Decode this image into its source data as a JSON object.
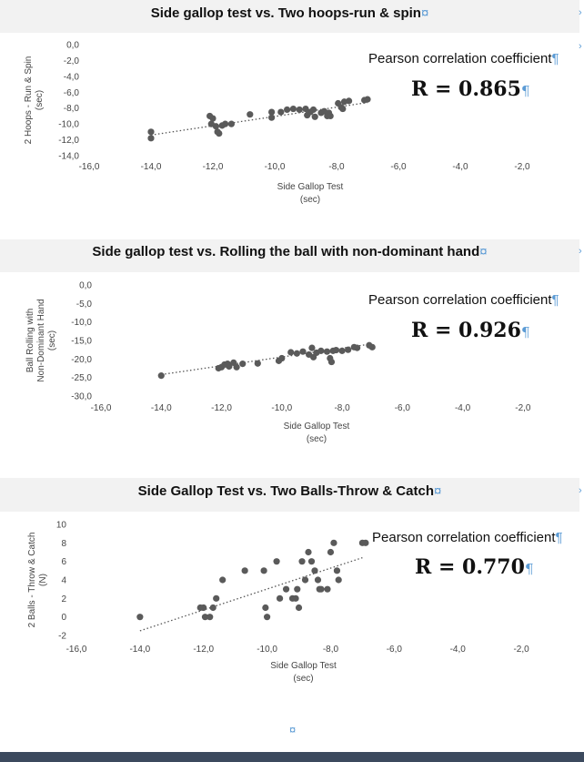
{
  "mark_symbol": "¤",
  "para_symbol": "¶",
  "footer_mark": "¤",
  "sections": [
    {
      "title": "Side gallop test vs. Two hoops-run & spin",
      "pearson_label": "Pearson correlation coefficient",
      "r_text": "R = 0.865",
      "chart_data": {
        "type": "scatter",
        "xlabel_lines": [
          "Side Gallop Test",
          "(sec)"
        ],
        "ylabel_lines": [
          "2 Hoops - Run & Spin",
          "(sec)"
        ],
        "xlim": [
          -16,
          -1
        ],
        "ylim": [
          -14,
          0
        ],
        "xticks": [
          -16,
          -14,
          -12,
          -10,
          -8,
          -6,
          -4,
          -2
        ],
        "xtick_labels": [
          "-16,0",
          "-14,0",
          "-12,0",
          "-10,0",
          "-8,0",
          "-6,0",
          "-4,0",
          "-2,0"
        ],
        "yticks": [
          0,
          -2,
          -4,
          -6,
          -8,
          -10,
          -12,
          -14
        ],
        "ytick_labels": [
          "0,0",
          "-2,0",
          "-4,0",
          "-6,0",
          "-8,0",
          "-10,0",
          "-12,0",
          "-14,0"
        ],
        "trendline": [
          [
            -14.0,
            -11.4
          ],
          [
            -7.0,
            -7.3
          ]
        ],
        "points": [
          [
            -14.0,
            -11.0
          ],
          [
            -14.0,
            -11.8
          ],
          [
            -12.1,
            -9.0
          ],
          [
            -12.0,
            -9.3
          ],
          [
            -12.05,
            -10.0
          ],
          [
            -11.9,
            -10.3
          ],
          [
            -11.85,
            -11.0
          ],
          [
            -11.8,
            -11.2
          ],
          [
            -11.7,
            -10.2
          ],
          [
            -11.6,
            -10.0
          ],
          [
            -11.4,
            -10.0
          ],
          [
            -10.8,
            -8.8
          ],
          [
            -10.1,
            -8.5
          ],
          [
            -10.1,
            -9.2
          ],
          [
            -9.8,
            -8.5
          ],
          [
            -9.6,
            -8.2
          ],
          [
            -9.4,
            -8.1
          ],
          [
            -9.2,
            -8.2
          ],
          [
            -9.0,
            -8.1
          ],
          [
            -8.95,
            -8.9
          ],
          [
            -8.85,
            -8.5
          ],
          [
            -8.75,
            -8.2
          ],
          [
            -8.7,
            -9.1
          ],
          [
            -8.5,
            -8.6
          ],
          [
            -8.4,
            -8.4
          ],
          [
            -8.3,
            -9.0
          ],
          [
            -8.25,
            -8.6
          ],
          [
            -8.2,
            -9.0
          ],
          [
            -7.95,
            -7.4
          ],
          [
            -7.85,
            -7.9
          ],
          [
            -7.8,
            -8.1
          ],
          [
            -7.75,
            -7.2
          ],
          [
            -7.6,
            -7.1
          ],
          [
            -7.1,
            -7.0
          ],
          [
            -7.0,
            -6.9
          ]
        ]
      }
    },
    {
      "title": "Side gallop test vs. Rolling the ball with non-dominant hand",
      "pearson_label": "Pearson correlation coefficient",
      "r_text": "R = 0.926",
      "chart_data": {
        "type": "scatter",
        "xlabel_lines": [
          "Side Gallop Test",
          "(sec)"
        ],
        "ylabel_lines": [
          "Ball Rolling with",
          "Non-Dominant Hand",
          "(sec)"
        ],
        "xlim": [
          -16,
          -1
        ],
        "ylim": [
          -30,
          0
        ],
        "xticks": [
          -16,
          -14,
          -12,
          -10,
          -8,
          -6,
          -4,
          -2
        ],
        "xtick_labels": [
          "-16,0",
          "-14,0",
          "-12,0",
          "-10,0",
          "-8,0",
          "-6,0",
          "-4,0",
          "-2,0"
        ],
        "yticks": [
          0,
          -5,
          -10,
          -15,
          -20,
          -25,
          -30
        ],
        "ytick_labels": [
          "0,0",
          "-5,0",
          "-10,0",
          "-15,0",
          "-20,0",
          "-25,0",
          "-30,0"
        ],
        "trendline": [
          [
            -14.0,
            -24.2
          ],
          [
            -7.0,
            -15.9
          ]
        ],
        "points": [
          [
            -14.0,
            -24.5
          ],
          [
            -12.1,
            -22.5
          ],
          [
            -12.0,
            -22.2
          ],
          [
            -11.9,
            -21.5
          ],
          [
            -11.8,
            -21.3
          ],
          [
            -11.75,
            -22.0
          ],
          [
            -11.6,
            -21.0
          ],
          [
            -11.5,
            -22.2
          ],
          [
            -11.3,
            -21.3
          ],
          [
            -10.8,
            -21.2
          ],
          [
            -10.1,
            -20.5
          ],
          [
            -10.0,
            -19.8
          ],
          [
            -9.7,
            -18.2
          ],
          [
            -9.5,
            -18.5
          ],
          [
            -9.3,
            -18.0
          ],
          [
            -9.1,
            -18.8
          ],
          [
            -9.0,
            -17.0
          ],
          [
            -8.95,
            -19.5
          ],
          [
            -8.85,
            -18.3
          ],
          [
            -8.7,
            -17.8
          ],
          [
            -8.5,
            -18.0
          ],
          [
            -8.4,
            -19.8
          ],
          [
            -8.35,
            -20.8
          ],
          [
            -8.3,
            -17.8
          ],
          [
            -8.2,
            -17.6
          ],
          [
            -8.0,
            -17.8
          ],
          [
            -7.8,
            -17.5
          ],
          [
            -7.6,
            -16.8
          ],
          [
            -7.5,
            -17.0
          ],
          [
            -7.1,
            -16.3
          ],
          [
            -7.0,
            -16.8
          ]
        ]
      }
    },
    {
      "title": "Side Gallop Test vs. Two Balls-Throw & Catch",
      "pearson_label": "Pearson correlation coefficient",
      "r_text": "R = 0.770",
      "chart_data": {
        "type": "scatter",
        "xlabel_lines": [
          "Side Gallop Test",
          "(sec)"
        ],
        "ylabel_lines": [
          "2 Balls - Throw & Catch",
          "(N)"
        ],
        "xlim": [
          -16,
          -1
        ],
        "ylim": [
          -2,
          10
        ],
        "xticks": [
          -16,
          -14,
          -12,
          -10,
          -8,
          -6,
          -4,
          -2
        ],
        "xtick_labels": [
          "-16,0",
          "-14,0",
          "-12,0",
          "-10,0",
          "-8,0",
          "-6,0",
          "-4,0",
          "-2,0"
        ],
        "yticks": [
          10,
          8,
          6,
          4,
          2,
          0,
          -2
        ],
        "ytick_labels": [
          "10",
          "8",
          "6",
          "4",
          "2",
          "0",
          "-2"
        ],
        "trendline": [
          [
            -14.0,
            -1.5
          ],
          [
            -7.0,
            6.4
          ]
        ],
        "points": [
          [
            -14.0,
            0
          ],
          [
            -12.1,
            1
          ],
          [
            -12.0,
            1
          ],
          [
            -11.95,
            0
          ],
          [
            -11.8,
            0
          ],
          [
            -11.7,
            1
          ],
          [
            -11.6,
            2
          ],
          [
            -11.4,
            4
          ],
          [
            -10.7,
            5
          ],
          [
            -10.1,
            5
          ],
          [
            -10.05,
            1
          ],
          [
            -10.0,
            0
          ],
          [
            -9.7,
            6
          ],
          [
            -9.6,
            2
          ],
          [
            -9.4,
            3
          ],
          [
            -9.2,
            2
          ],
          [
            -9.1,
            2
          ],
          [
            -9.05,
            3
          ],
          [
            -9.0,
            1
          ],
          [
            -8.9,
            6
          ],
          [
            -8.8,
            4
          ],
          [
            -8.7,
            7
          ],
          [
            -8.6,
            6
          ],
          [
            -8.5,
            5
          ],
          [
            -8.4,
            4
          ],
          [
            -8.35,
            3
          ],
          [
            -8.3,
            3
          ],
          [
            -8.1,
            3
          ],
          [
            -8.0,
            7
          ],
          [
            -7.9,
            8
          ],
          [
            -7.8,
            5
          ],
          [
            -7.75,
            4
          ],
          [
            -7.0,
            8
          ],
          [
            -6.9,
            8
          ]
        ]
      }
    }
  ]
}
